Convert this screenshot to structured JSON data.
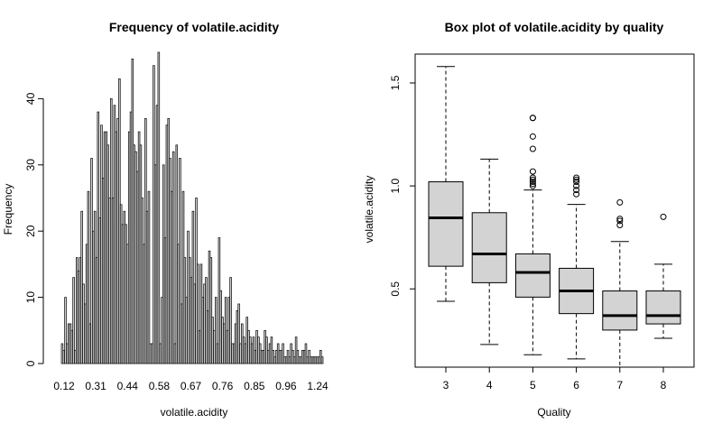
{
  "chart_data": [
    {
      "type": "bar",
      "title": "Frequency of volatile.acidity",
      "xlabel": "volatile.acidity",
      "ylabel": "Frequency",
      "ylim": [
        0,
        47
      ],
      "y_ticks": [
        0,
        10,
        20,
        30,
        40
      ],
      "x_tick_labels": [
        "0.12",
        "0.31",
        "0.44",
        "0.58",
        "0.67",
        "0.76",
        "0.85",
        "0.96",
        "1.24"
      ],
      "grid": false,
      "bar_color": "#d3d3d3",
      "values": [
        3,
        2,
        10,
        3,
        6,
        6,
        5,
        13,
        2,
        16,
        14,
        16,
        23,
        12,
        9,
        18,
        26,
        6,
        31,
        20,
        23,
        16,
        38,
        22,
        36,
        28,
        35,
        35,
        33,
        25,
        40,
        25,
        39,
        35,
        37,
        43,
        24,
        21,
        23,
        21,
        18,
        35,
        38,
        46,
        33,
        32,
        29,
        35,
        33,
        25,
        18,
        37,
        23,
        26,
        3,
        3,
        45,
        30,
        39,
        47,
        3,
        10,
        30,
        19,
        36,
        37,
        31,
        26,
        32,
        3,
        33,
        18,
        31,
        9,
        26,
        16,
        10,
        20,
        16,
        13,
        23,
        12,
        25,
        15,
        5,
        15,
        10,
        12,
        13,
        8,
        17,
        16,
        7,
        5,
        10,
        3,
        19,
        11,
        7,
        6,
        10,
        5,
        10,
        13,
        3,
        3,
        6,
        8,
        9,
        3,
        6,
        4,
        3,
        7,
        5,
        4,
        3,
        4,
        2,
        5,
        4,
        3,
        2,
        2,
        5,
        4,
        2,
        3,
        4,
        2,
        1,
        2,
        3,
        2,
        2,
        3,
        1,
        1,
        2,
        1,
        3,
        2,
        1,
        4,
        2,
        1,
        1,
        2,
        2,
        3,
        1,
        2,
        1,
        1,
        1,
        1,
        1,
        1,
        2,
        1
      ]
    },
    {
      "type": "box",
      "title": "Box plot of volatile.acidity by quality",
      "xlabel": "Quality",
      "ylabel": "volatile.acidity",
      "ylim": [
        0.12,
        1.64
      ],
      "y_ticks": [
        0.5,
        1.0,
        1.5
      ],
      "y_tick_labels": [
        "0.5",
        "1.0",
        "1.5"
      ],
      "categories": [
        "3",
        "4",
        "5",
        "6",
        "7",
        "8"
      ],
      "box_color": "#d3d3d3",
      "boxes": [
        {
          "whisker_low": 0.44,
          "q1": 0.61,
          "median": 0.845,
          "q3": 1.02,
          "whisker_high": 1.58,
          "outliers": []
        },
        {
          "whisker_low": 0.23,
          "q1": 0.53,
          "median": 0.67,
          "q3": 0.87,
          "whisker_high": 1.13,
          "outliers": []
        },
        {
          "whisker_low": 0.18,
          "q1": 0.46,
          "median": 0.58,
          "q3": 0.67,
          "whisker_high": 0.98,
          "outliers": [
            1.33,
            1.33,
            1.24,
            1.18,
            1.07,
            1.04,
            1.03,
            1.02,
            1.01,
            1.0
          ]
        },
        {
          "whisker_low": 0.16,
          "q1": 0.38,
          "median": 0.49,
          "q3": 0.6,
          "whisker_high": 0.91,
          "outliers": [
            1.04,
            1.03,
            1.02,
            1.0,
            0.98,
            0.96
          ]
        },
        {
          "whisker_low": 0.12,
          "q1": 0.3,
          "median": 0.37,
          "q3": 0.49,
          "whisker_high": 0.73,
          "outliers": [
            0.92,
            0.84,
            0.83,
            0.81
          ]
        },
        {
          "whisker_low": 0.26,
          "q1": 0.33,
          "median": 0.37,
          "q3": 0.49,
          "whisker_high": 0.62,
          "outliers": [
            0.85
          ]
        }
      ]
    }
  ]
}
